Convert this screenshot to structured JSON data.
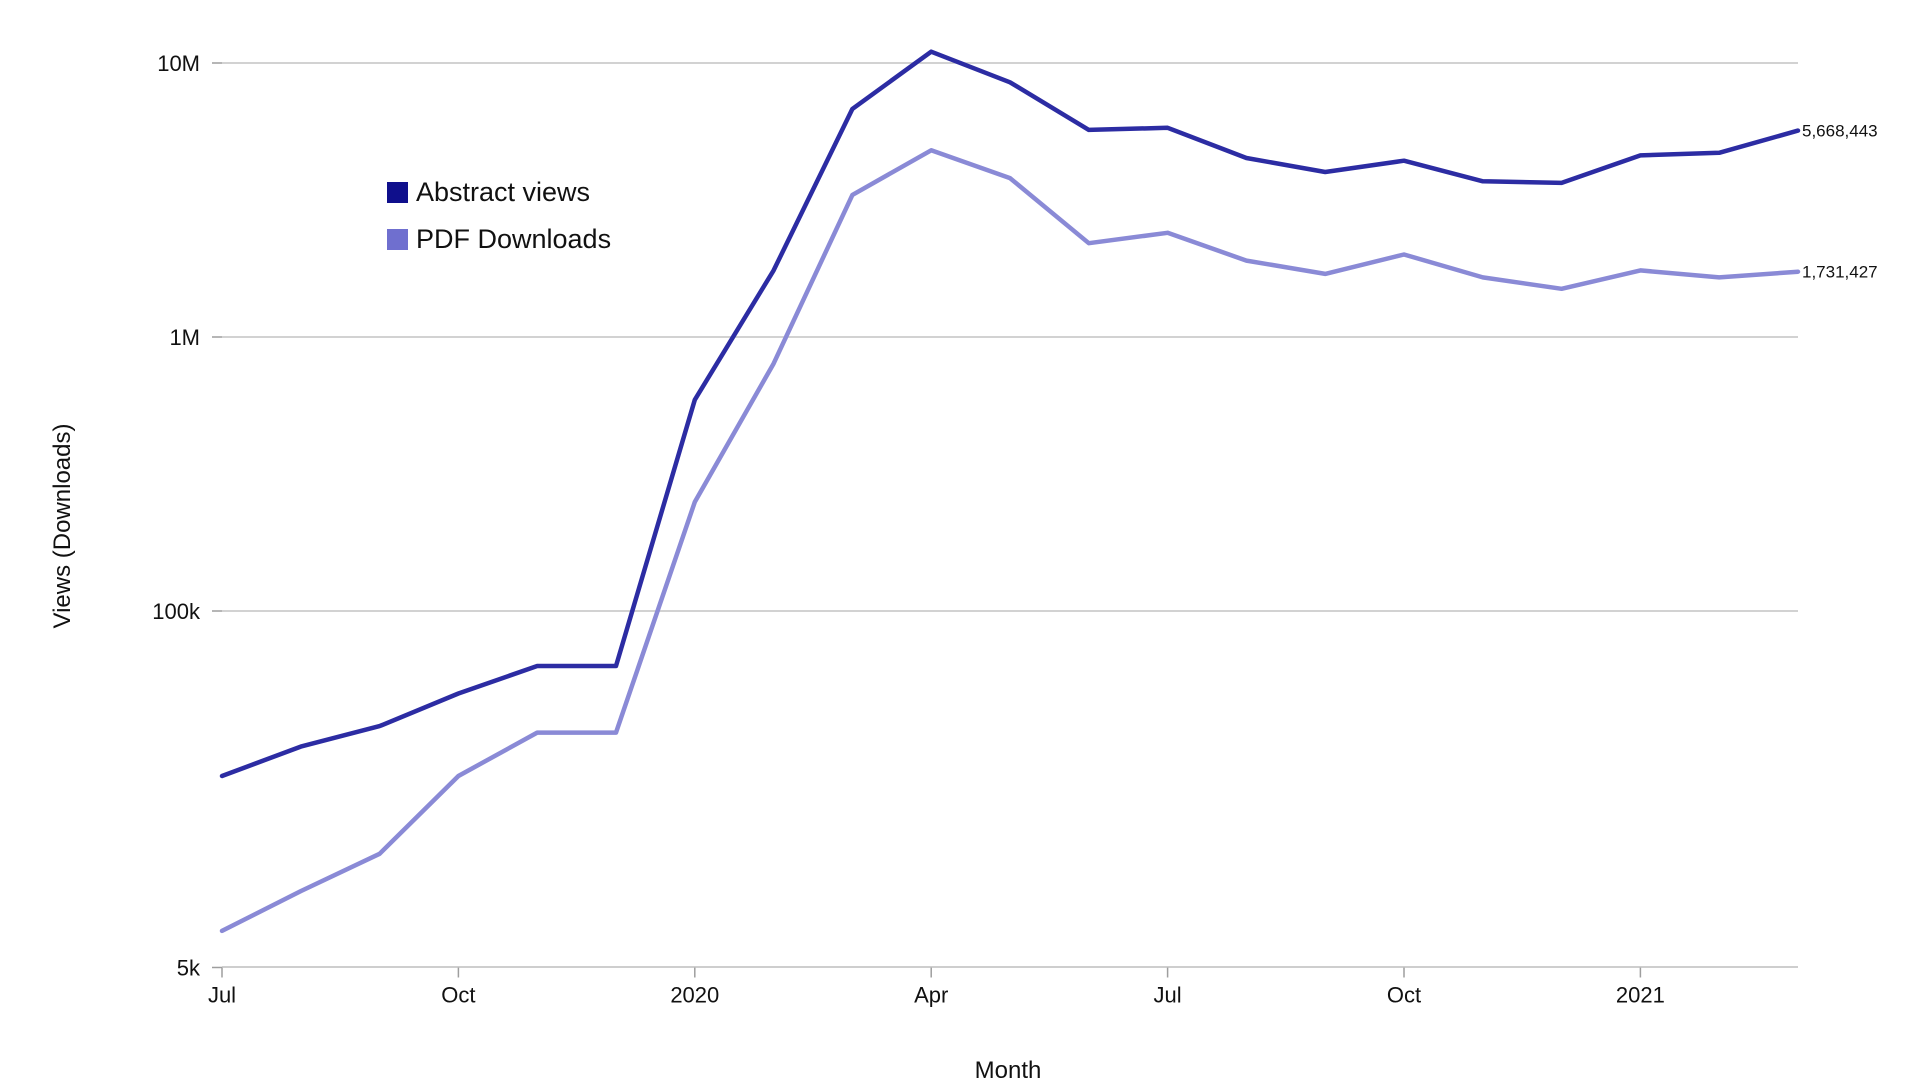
{
  "chart_data": {
    "type": "line",
    "title": "",
    "xlabel": "Month",
    "ylabel": "Views (Downloads)",
    "yscale": "log",
    "ylim": [
      5000,
      11000000
    ],
    "grid": true,
    "legend_position": "upper-left",
    "x": [
      "2019-07",
      "2019-08",
      "2019-09",
      "2019-10",
      "2019-11",
      "2019-12",
      "2020-01",
      "2020-02",
      "2020-03",
      "2020-04",
      "2020-05",
      "2020-06",
      "2020-07",
      "2020-08",
      "2020-09",
      "2020-10",
      "2020-11",
      "2020-12",
      "2021-01",
      "2021-02",
      "2021-03"
    ],
    "x_ticks": [
      {
        "x": "2019-07",
        "label": "Jul"
      },
      {
        "x": "2019-10",
        "label": "Oct"
      },
      {
        "x": "2020-01",
        "label": "2020"
      },
      {
        "x": "2020-04",
        "label": "Apr"
      },
      {
        "x": "2020-07",
        "label": "Jul"
      },
      {
        "x": "2020-10",
        "label": "Oct"
      },
      {
        "x": "2021-01",
        "label": "2021"
      }
    ],
    "y_ticks": [
      {
        "value": 5000,
        "label": "5k"
      },
      {
        "value": 100000,
        "label": "100k"
      },
      {
        "value": 1000000,
        "label": "1M"
      },
      {
        "value": 10000000,
        "label": "10M"
      }
    ],
    "series": [
      {
        "name": "Abstract views",
        "color": "#2c2ca3",
        "legend_color": "#0f0f8c",
        "values": [
          25000,
          32000,
          38000,
          50000,
          63000,
          63000,
          590000,
          1750000,
          6800000,
          11000000,
          8500000,
          5700000,
          5800000,
          4500000,
          4000000,
          4400000,
          3700000,
          3650000,
          4600000,
          4700000,
          5668443
        ],
        "end_label": "5,668,443"
      },
      {
        "name": "PDF Downloads",
        "color": "#8a8ad6",
        "legend_color": "#6f6fcf",
        "values": [
          6800,
          9500,
          13000,
          25000,
          36000,
          36000,
          250000,
          800000,
          3300000,
          4800000,
          3800000,
          2200000,
          2400000,
          1900000,
          1700000,
          2000000,
          1650000,
          1500000,
          1750000,
          1650000,
          1731427
        ],
        "end_label": "1,731,427"
      }
    ]
  }
}
